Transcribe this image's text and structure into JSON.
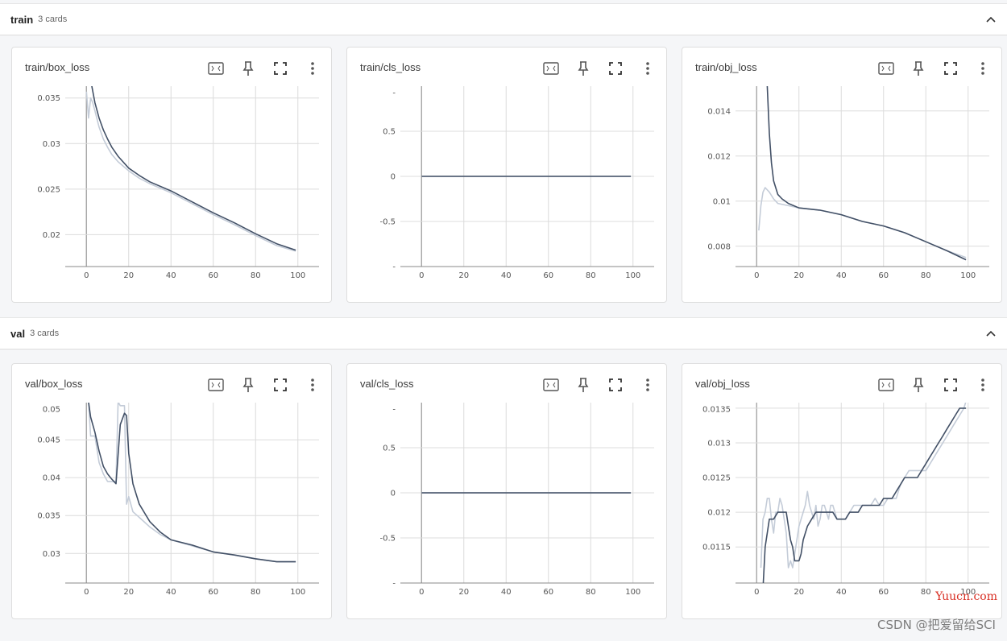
{
  "groups": [
    {
      "name": "train",
      "count": "3 cards"
    },
    {
      "name": "val",
      "count": "3 cards"
    }
  ],
  "cards": [
    {
      "title": "train/box_loss"
    },
    {
      "title": "train/cls_loss"
    },
    {
      "title": "train/obj_loss"
    },
    {
      "title": "val/box_loss"
    },
    {
      "title": "val/cls_loss"
    },
    {
      "title": "val/obj_loss"
    }
  ],
  "toolbar_icons": [
    "fit-domain-icon",
    "pin-icon",
    "fullscreen-icon",
    "more-vert-icon"
  ],
  "colors": {
    "smoothed": "#425066",
    "raw": "#c4ccd8",
    "grid": "#dcdcdc"
  },
  "watermark": "CSDN @把爱留给SCI",
  "overlay_text": "Yuucn.com",
  "chart_data": [
    {
      "type": "line",
      "title": "train/box_loss",
      "xlim": [
        -10,
        110
      ],
      "ylim": [
        0.0165,
        0.0363
      ],
      "xticks": [
        0,
        20,
        40,
        60,
        80,
        100
      ],
      "yticks": [
        {
          "v": 0.02,
          "l": "0.02"
        },
        {
          "v": 0.025,
          "l": "0.025"
        },
        {
          "v": 0.03,
          "l": "0.03"
        },
        {
          "v": 0.035,
          "l": "0.035"
        }
      ],
      "series": [
        {
          "role": "raw",
          "x": [
            0,
            1,
            2,
            3,
            4,
            6,
            8,
            10,
            12,
            15,
            20,
            25,
            30,
            40,
            50,
            60,
            70,
            80,
            90,
            99
          ],
          "y": [
            0.0357,
            0.0328,
            0.035,
            0.0345,
            0.0336,
            0.0318,
            0.0305,
            0.0296,
            0.0288,
            0.028,
            0.027,
            0.0262,
            0.0256,
            0.0246,
            0.0234,
            0.0222,
            0.0211,
            0.0199,
            0.0188,
            0.0182
          ]
        },
        {
          "role": "smoothed",
          "x": [
            0,
            2,
            4,
            6,
            8,
            10,
            12,
            15,
            20,
            25,
            30,
            40,
            50,
            60,
            70,
            80,
            90,
            99
          ],
          "y": [
            0.038,
            0.037,
            0.0345,
            0.0328,
            0.0315,
            0.0305,
            0.0296,
            0.0286,
            0.0273,
            0.0265,
            0.0258,
            0.0248,
            0.0236,
            0.0224,
            0.0213,
            0.0201,
            0.019,
            0.0183
          ]
        }
      ]
    },
    {
      "type": "line",
      "title": "train/cls_loss",
      "xlim": [
        -10,
        110
      ],
      "ylim": [
        -1,
        1
      ],
      "xticks": [
        0,
        20,
        40,
        60,
        80,
        100
      ],
      "yticks": [
        {
          "v": -1,
          "l": "-"
        },
        {
          "v": -0.5,
          "l": "-0.5"
        },
        {
          "v": 0,
          "l": "0"
        },
        {
          "v": 0.5,
          "l": "0.5"
        },
        {
          "v": 1,
          "l": "-"
        }
      ],
      "series": [
        {
          "role": "raw",
          "x": [
            0,
            99
          ],
          "y": [
            0,
            0
          ]
        },
        {
          "role": "smoothed",
          "x": [
            0,
            99
          ],
          "y": [
            0,
            0
          ]
        }
      ]
    },
    {
      "type": "line",
      "title": "train/obj_loss",
      "xlim": [
        -10,
        110
      ],
      "ylim": [
        0.0071,
        0.0151
      ],
      "xticks": [
        0,
        20,
        40,
        60,
        80,
        100
      ],
      "yticks": [
        {
          "v": 0.008,
          "l": "0.008"
        },
        {
          "v": 0.01,
          "l": "0.01"
        },
        {
          "v": 0.012,
          "l": "0.012"
        },
        {
          "v": 0.014,
          "l": "0.014"
        }
      ],
      "series": [
        {
          "role": "raw",
          "x": [
            1,
            2,
            3,
            4,
            6,
            8,
            10,
            15,
            20,
            30,
            40,
            50,
            60,
            70,
            80,
            90,
            99
          ],
          "y": [
            0.0087,
            0.0098,
            0.0104,
            0.0106,
            0.0104,
            0.0101,
            0.0099,
            0.0098,
            0.0097,
            0.0096,
            0.0094,
            0.0091,
            0.0089,
            0.0086,
            0.0082,
            0.0078,
            0.0075
          ]
        },
        {
          "role": "smoothed",
          "x": [
            5,
            6,
            7,
            8,
            10,
            12,
            15,
            20,
            30,
            40,
            50,
            60,
            70,
            80,
            90,
            99
          ],
          "y": [
            0.0151,
            0.013,
            0.0117,
            0.0109,
            0.0103,
            0.0101,
            0.0099,
            0.0097,
            0.0096,
            0.0094,
            0.0091,
            0.0089,
            0.0086,
            0.0082,
            0.0078,
            0.0074
          ]
        }
      ]
    },
    {
      "type": "line",
      "title": "val/box_loss",
      "xlim": [
        -10,
        110
      ],
      "ylim": [
        0.0261,
        0.0499
      ],
      "xticks": [
        0,
        20,
        40,
        60,
        80,
        100
      ],
      "yticks": [
        {
          "v": 0.03,
          "l": "0.03"
        },
        {
          "v": 0.035,
          "l": "0.035"
        },
        {
          "v": 0.04,
          "l": "0.04"
        },
        {
          "v": 0.045,
          "l": "0.045"
        },
        {
          "v": 0.05,
          "l": "0.05"
        }
      ],
      "series": [
        {
          "role": "raw",
          "x": [
            1,
            2,
            4,
            6,
            8,
            10,
            12,
            14,
            15,
            16,
            18,
            19,
            20,
            22,
            24,
            26,
            30,
            35,
            40,
            50,
            60,
            70,
            80,
            90,
            99
          ],
          "y": [
            0.05,
            0.0455,
            0.0455,
            0.042,
            0.0405,
            0.0395,
            0.0395,
            0.0395,
            0.05,
            0.0495,
            0.0495,
            0.0365,
            0.0375,
            0.0355,
            0.035,
            0.0345,
            0.0335,
            0.0325,
            0.0318,
            0.031,
            0.0302,
            0.0298,
            0.0293,
            0.0289,
            0.0289
          ]
        },
        {
          "role": "smoothed",
          "x": [
            0,
            1,
            2,
            4,
            6,
            8,
            10,
            12,
            14,
            16,
            18,
            19,
            20,
            22,
            25,
            30,
            35,
            40,
            50,
            60,
            70,
            80,
            90,
            99
          ],
          "y": [
            0.05,
            0.05,
            0.048,
            0.046,
            0.0435,
            0.0415,
            0.0405,
            0.0398,
            0.0392,
            0.047,
            0.0485,
            0.0482,
            0.0432,
            0.0392,
            0.0365,
            0.0342,
            0.0328,
            0.0318,
            0.0311,
            0.0302,
            0.0298,
            0.0293,
            0.0289,
            0.0289
          ]
        }
      ]
    },
    {
      "type": "line",
      "title": "val/cls_loss",
      "xlim": [
        -10,
        110
      ],
      "ylim": [
        -1,
        1
      ],
      "xticks": [
        0,
        20,
        40,
        60,
        80,
        100
      ],
      "yticks": [
        {
          "v": -1,
          "l": "-"
        },
        {
          "v": -0.5,
          "l": "-0.5"
        },
        {
          "v": 0,
          "l": "0"
        },
        {
          "v": 0.5,
          "l": "0.5"
        },
        {
          "v": 1,
          "l": "-"
        }
      ],
      "series": [
        {
          "role": "raw",
          "x": [
            0,
            99
          ],
          "y": [
            0,
            0
          ]
        },
        {
          "role": "smoothed",
          "x": [
            0,
            99
          ],
          "y": [
            0,
            0
          ]
        }
      ]
    },
    {
      "type": "line",
      "title": "val/obj_loss",
      "xlim": [
        -10,
        110
      ],
      "ylim": [
        0.01098,
        0.01358
      ],
      "xticks": [
        0,
        20,
        40,
        60,
        80,
        100
      ],
      "yticks": [
        {
          "v": 0.0115,
          "l": "0.0115"
        },
        {
          "v": 0.012,
          "l": "0.012"
        },
        {
          "v": 0.0125,
          "l": "0.0125"
        },
        {
          "v": 0.013,
          "l": "0.013"
        },
        {
          "v": 0.0135,
          "l": "0.0135"
        }
      ],
      "series": [
        {
          "role": "raw",
          "x": [
            2,
            3,
            4,
            5,
            6,
            7,
            8,
            9,
            10,
            11,
            12,
            13,
            14,
            15,
            16,
            17,
            18,
            19,
            20,
            21,
            22,
            23,
            24,
            25,
            26,
            27,
            28,
            29,
            30,
            31,
            32,
            33,
            34,
            35,
            36,
            37,
            38,
            39,
            40,
            42,
            44,
            46,
            48,
            50,
            52,
            54,
            56,
            58,
            60,
            62,
            64,
            66,
            68,
            70,
            72,
            74,
            76,
            78,
            80,
            82,
            84,
            86,
            88,
            90,
            92,
            94,
            96,
            98,
            99
          ],
          "y": [
            0.0112,
            0.0119,
            0.012,
            0.0122,
            0.0122,
            0.0119,
            0.0117,
            0.012,
            0.012,
            0.0122,
            0.0121,
            0.0119,
            0.0117,
            0.0112,
            0.0113,
            0.0112,
            0.0114,
            0.0116,
            0.0118,
            0.0119,
            0.012,
            0.0121,
            0.0123,
            0.0121,
            0.012,
            0.0119,
            0.0121,
            0.0118,
            0.0119,
            0.0121,
            0.0121,
            0.012,
            0.0119,
            0.0121,
            0.0121,
            0.012,
            0.0119,
            0.0119,
            0.0119,
            0.0119,
            0.012,
            0.0121,
            0.0121,
            0.0121,
            0.0121,
            0.0121,
            0.0122,
            0.0121,
            0.0121,
            0.0122,
            0.0122,
            0.0122,
            0.0124,
            0.0125,
            0.0126,
            0.0126,
            0.0126,
            0.0126,
            0.0126,
            0.0127,
            0.0128,
            0.0129,
            0.013,
            0.0131,
            0.0132,
            0.0133,
            0.0134,
            0.0135,
            0.0136
          ]
        },
        {
          "role": "smoothed",
          "x": [
            3,
            4,
            6,
            8,
            10,
            12,
            14,
            15,
            16,
            17,
            18,
            19,
            20,
            21,
            22,
            24,
            26,
            28,
            30,
            32,
            34,
            36,
            38,
            40,
            42,
            44,
            46,
            48,
            50,
            52,
            54,
            56,
            58,
            60,
            62,
            64,
            66,
            68,
            70,
            72,
            74,
            76,
            78,
            80,
            82,
            84,
            86,
            88,
            90,
            92,
            94,
            96,
            98,
            99
          ],
          "y": [
            0.0109,
            0.0115,
            0.0119,
            0.0119,
            0.012,
            0.012,
            0.012,
            0.0118,
            0.0116,
            0.0115,
            0.0113,
            0.0113,
            0.0113,
            0.0114,
            0.0116,
            0.0118,
            0.0119,
            0.012,
            0.012,
            0.012,
            0.012,
            0.012,
            0.0119,
            0.0119,
            0.0119,
            0.012,
            0.012,
            0.012,
            0.0121,
            0.0121,
            0.0121,
            0.0121,
            0.0121,
            0.0122,
            0.0122,
            0.0122,
            0.0123,
            0.0124,
            0.0125,
            0.0125,
            0.0125,
            0.0125,
            0.0126,
            0.0127,
            0.0128,
            0.0129,
            0.013,
            0.0131,
            0.0132,
            0.0133,
            0.0134,
            0.0135,
            0.0135,
            0.0135
          ]
        }
      ]
    }
  ]
}
